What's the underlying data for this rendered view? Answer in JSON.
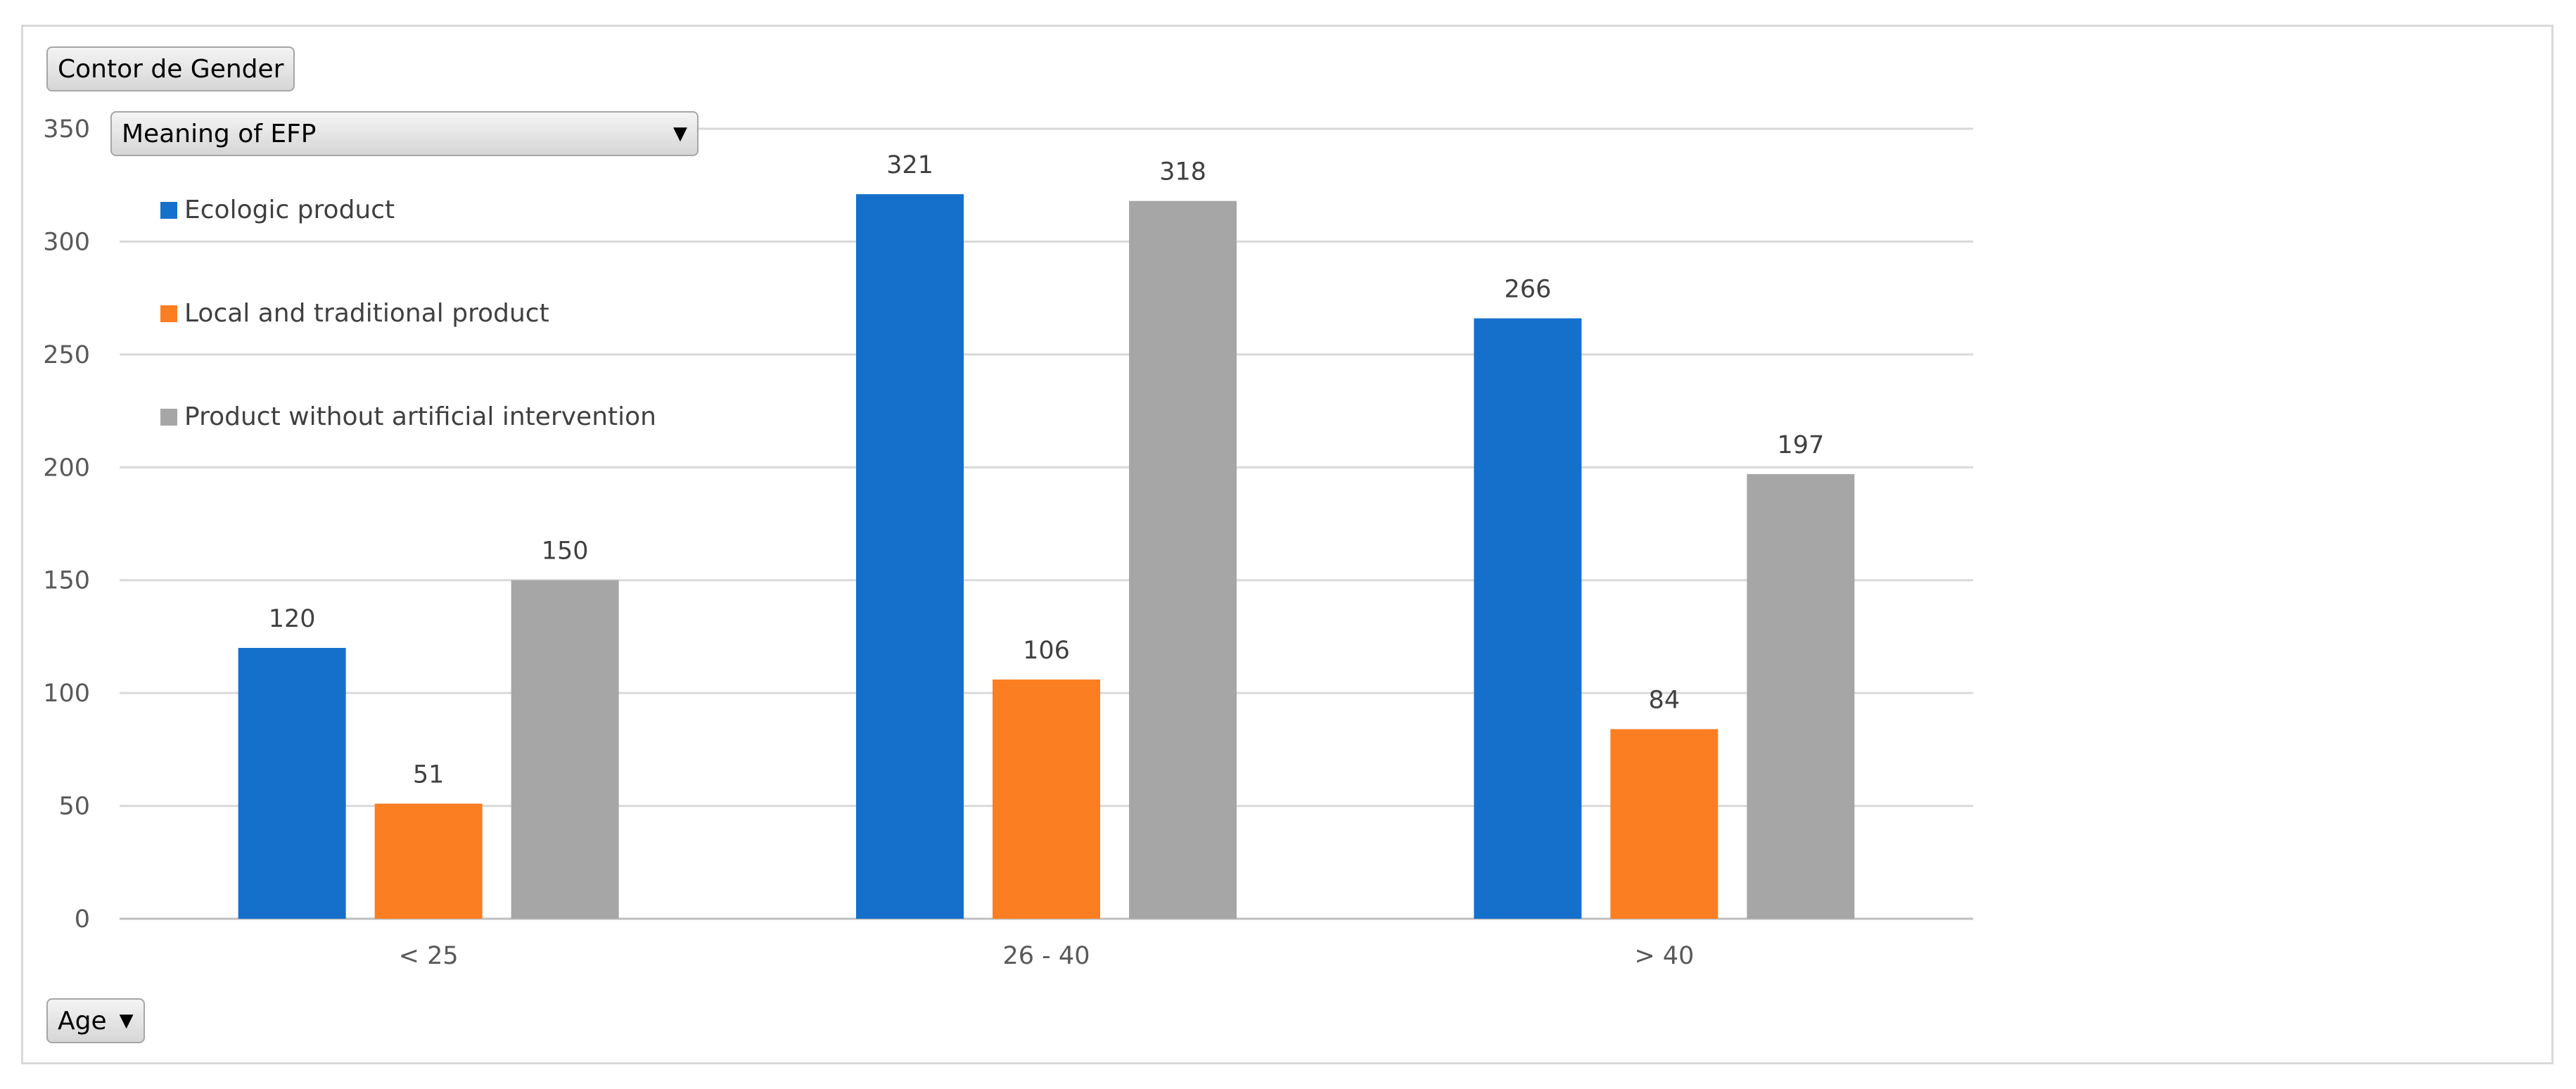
{
  "field_button": {
    "label": "Contor de Gender"
  },
  "series_dropdown": {
    "label": "Meaning of EFP"
  },
  "category_dropdown": {
    "label": "Age"
  },
  "chart_data": {
    "type": "bar",
    "categories": [
      "< 25",
      "26 - 40",
      "> 40"
    ],
    "series": [
      {
        "name": "Ecologic product",
        "color": "#1570cc",
        "values": [
          120,
          321,
          266
        ]
      },
      {
        "name": "Local and traditional product",
        "color": "#fb7e22",
        "values": [
          51,
          106,
          84
        ]
      },
      {
        "name": "Product without artificial intervention",
        "color": "#a6a6a6",
        "values": [
          150,
          318,
          197
        ]
      }
    ],
    "ylim": [
      0,
      350
    ],
    "yticks": [
      0,
      50,
      100,
      150,
      200,
      250,
      300,
      350
    ],
    "grid": true,
    "legend": "top-left"
  }
}
